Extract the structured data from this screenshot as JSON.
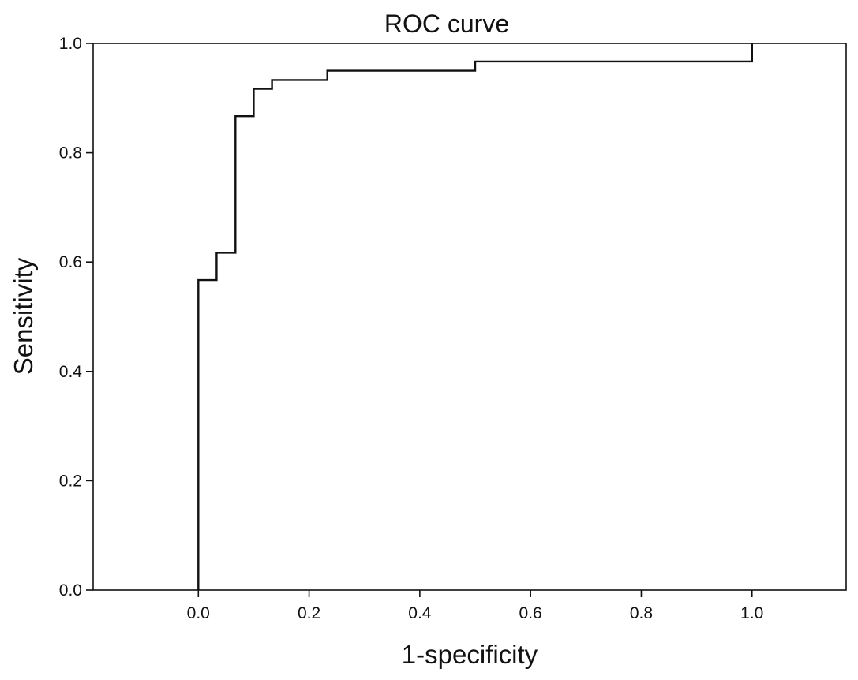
{
  "chart_data": {
    "type": "line",
    "title": "ROC curve",
    "xlabel": "1-specificity",
    "ylabel": "Sensitivity",
    "xlim": [
      -0.19,
      1.17
    ],
    "ylim": [
      0,
      1
    ],
    "grid": false,
    "legend": "none",
    "x_ticks": [
      "0.0",
      "0.2",
      "0.4",
      "0.6",
      "0.8",
      "1.0"
    ],
    "y_ticks": [
      "0.0",
      "0.2",
      "0.4",
      "0.6",
      "0.8",
      "1.0"
    ],
    "series": [
      {
        "line_color": "#111111",
        "x": [
          0.0,
          0.0,
          0.033,
          0.033,
          0.067,
          0.067,
          0.1,
          0.1,
          0.133,
          0.133,
          0.233,
          0.233,
          0.5,
          0.5,
          1.0,
          1.0
        ],
        "y": [
          0.0,
          0.567,
          0.567,
          0.617,
          0.617,
          0.867,
          0.867,
          0.917,
          0.917,
          0.933,
          0.933,
          0.95,
          0.95,
          0.967,
          0.967,
          1.0
        ]
      }
    ]
  }
}
